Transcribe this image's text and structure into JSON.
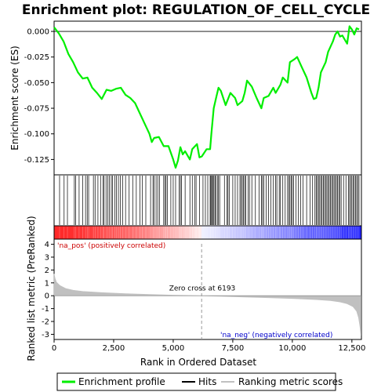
{
  "chart_data": {
    "type": "line",
    "title": "Enrichment plot: REGULATION_OF_CELL_CYCLE",
    "xlabel": "Rank in Ordered Dataset",
    "ylabel_top": "Enrichment score (ES)",
    "ylabel_bottom": "Ranked list metric (PreRanked)",
    "x_range": [
      0,
      12900
    ],
    "es_ylim": [
      -0.14,
      0.01
    ],
    "es_yticks": [
      0.0,
      -0.025,
      -0.05,
      -0.075,
      -0.1,
      -0.125
    ],
    "es_ytick_labels": [
      "0.000",
      "-0.025",
      "-0.050",
      "-0.075",
      "-0.100",
      "-0.125"
    ],
    "metric_ylim": [
      -3.4,
      4.4
    ],
    "metric_yticks": [
      4,
      3,
      2,
      1,
      0,
      -1,
      -2,
      -3
    ],
    "metric_ytick_labels": [
      "4",
      "3",
      "2",
      "1",
      "0",
      "-1",
      "-2",
      "-3"
    ],
    "xticks": [
      0,
      2500,
      5000,
      7500,
      10000,
      12500
    ],
    "xtick_labels": [
      "0",
      "2,500",
      "5,000",
      "7,500",
      "10,000",
      "12,500"
    ],
    "zero_cross": 6193,
    "zero_cross_label": "Zero cross at 6193",
    "pos_label": "'na_pos' (positively correlated)",
    "neg_label": "'na_neg' (negatively correlated)",
    "grid": false,
    "legend_position": "bottom",
    "legend": [
      {
        "name": "Enrichment profile",
        "color": "#00ee00"
      },
      {
        "name": "Hits",
        "color": "#000000"
      },
      {
        "name": "Ranking metric scores",
        "color": "#c0c0c0"
      }
    ],
    "colors": {
      "profile": "#00ee00",
      "hits": "#000000",
      "metric": "#c0c0c0",
      "pos": "#ff0000",
      "neg": "#0000ff"
    },
    "es_profile": [
      [
        0,
        0.004
      ],
      [
        200,
        -0.002
      ],
      [
        400,
        -0.01
      ],
      [
        600,
        -0.022
      ],
      [
        800,
        -0.03
      ],
      [
        1000,
        -0.04
      ],
      [
        1200,
        -0.046
      ],
      [
        1400,
        -0.045
      ],
      [
        1600,
        -0.055
      ],
      [
        1800,
        -0.06
      ],
      [
        2000,
        -0.066
      ],
      [
        2200,
        -0.057
      ],
      [
        2400,
        -0.058
      ],
      [
        2600,
        -0.056
      ],
      [
        2800,
        -0.055
      ],
      [
        3000,
        -0.062
      ],
      [
        3200,
        -0.065
      ],
      [
        3400,
        -0.07
      ],
      [
        3600,
        -0.08
      ],
      [
        3800,
        -0.09
      ],
      [
        4000,
        -0.1
      ],
      [
        4100,
        -0.108
      ],
      [
        4200,
        -0.104
      ],
      [
        4400,
        -0.103
      ],
      [
        4600,
        -0.112
      ],
      [
        4800,
        -0.112
      ],
      [
        5000,
        -0.125
      ],
      [
        5100,
        -0.133
      ],
      [
        5200,
        -0.126
      ],
      [
        5300,
        -0.113
      ],
      [
        5400,
        -0.12
      ],
      [
        5500,
        -0.117
      ],
      [
        5700,
        -0.125
      ],
      [
        5800,
        -0.115
      ],
      [
        6000,
        -0.11
      ],
      [
        6100,
        -0.123
      ],
      [
        6200,
        -0.122
      ],
      [
        6400,
        -0.115
      ],
      [
        6550,
        -0.115
      ],
      [
        6600,
        -0.1
      ],
      [
        6700,
        -0.075
      ],
      [
        6800,
        -0.065
      ],
      [
        6900,
        -0.055
      ],
      [
        7000,
        -0.058
      ],
      [
        7200,
        -0.072
      ],
      [
        7400,
        -0.06
      ],
      [
        7600,
        -0.065
      ],
      [
        7700,
        -0.072
      ],
      [
        7900,
        -0.068
      ],
      [
        8000,
        -0.06
      ],
      [
        8100,
        -0.048
      ],
      [
        8300,
        -0.054
      ],
      [
        8500,
        -0.065
      ],
      [
        8700,
        -0.075
      ],
      [
        8800,
        -0.065
      ],
      [
        9000,
        -0.063
      ],
      [
        9200,
        -0.055
      ],
      [
        9300,
        -0.06
      ],
      [
        9500,
        -0.052
      ],
      [
        9600,
        -0.045
      ],
      [
        9800,
        -0.05
      ],
      [
        9900,
        -0.03
      ],
      [
        10100,
        -0.027
      ],
      [
        10200,
        -0.025
      ],
      [
        10400,
        -0.035
      ],
      [
        10600,
        -0.045
      ],
      [
        10800,
        -0.06
      ],
      [
        10900,
        -0.066
      ],
      [
        11000,
        -0.065
      ],
      [
        11100,
        -0.055
      ],
      [
        11200,
        -0.04
      ],
      [
        11400,
        -0.03
      ],
      [
        11500,
        -0.02
      ],
      [
        11700,
        -0.01
      ],
      [
        11800,
        -0.003
      ],
      [
        11900,
        0.0
      ],
      [
        12000,
        -0.005
      ],
      [
        12100,
        -0.004
      ],
      [
        12200,
        -0.008
      ],
      [
        12300,
        -0.012
      ],
      [
        12400,
        0.005
      ],
      [
        12500,
        0.002
      ],
      [
        12600,
        -0.003
      ],
      [
        12700,
        0.003
      ],
      [
        12800,
        0.002
      ]
    ],
    "hit_ranks": [
      230,
      420,
      560,
      850,
      900,
      1050,
      1200,
      1320,
      1390,
      1450,
      1650,
      1720,
      1840,
      1950,
      2050,
      2100,
      2180,
      2250,
      2320,
      2400,
      2450,
      2550,
      2620,
      2700,
      2780,
      2880,
      3000,
      3150,
      3300,
      3450,
      3600,
      3700,
      3850,
      4050,
      4150,
      4200,
      4280,
      4350,
      4420,
      4600,
      4650,
      4700,
      4750,
      4900,
      5000,
      5100,
      5250,
      5300,
      5350,
      5500,
      5700,
      5800,
      5900,
      5960,
      6100,
      6250,
      6350,
      6450,
      6550,
      6580,
      6620,
      6650,
      6700,
      6750,
      6780,
      6850,
      6900,
      6950,
      7150,
      7250,
      7300,
      7350,
      7500,
      7600,
      7700,
      7800,
      7850,
      7900,
      7950,
      8000,
      8050,
      8150,
      8200,
      8300,
      8450,
      8600,
      8700,
      8750,
      8800,
      8900,
      9000,
      9100,
      9200,
      9300,
      9350,
      9450,
      9500,
      9600,
      9700,
      9800,
      9850,
      9900,
      9950,
      10000,
      10050,
      10150,
      10250,
      10350,
      10450,
      10600,
      10750,
      10850,
      10950,
      11000,
      11050,
      11100,
      11150,
      11200,
      11250,
      11300,
      11350,
      11400,
      11450,
      11500,
      11550,
      11600,
      11650,
      11700,
      11750,
      11800,
      11850,
      11900,
      11950,
      12000,
      12050,
      12150,
      12250,
      12350,
      12400,
      12450,
      12500,
      12550,
      12600,
      12650,
      12700,
      12750,
      12800
    ],
    "metric_curve": [
      [
        0,
        1.7
      ],
      [
        40,
        1.35
      ],
      [
        100,
        1.05
      ],
      [
        250,
        0.78
      ],
      [
        500,
        0.55
      ],
      [
        800,
        0.42
      ],
      [
        1200,
        0.33
      ],
      [
        2000,
        0.24
      ],
      [
        3000,
        0.15
      ],
      [
        4000,
        0.09
      ],
      [
        5000,
        0.04
      ],
      [
        6193,
        0.0
      ],
      [
        7000,
        -0.04
      ],
      [
        8000,
        -0.1
      ],
      [
        9000,
        -0.15
      ],
      [
        10000,
        -0.21
      ],
      [
        11000,
        -0.3
      ],
      [
        11600,
        -0.38
      ],
      [
        12000,
        -0.48
      ],
      [
        12300,
        -0.62
      ],
      [
        12550,
        -0.85
      ],
      [
        12700,
        -1.2
      ],
      [
        12780,
        -1.7
      ],
      [
        12840,
        -2.4
      ],
      [
        12880,
        -3.1
      ]
    ]
  }
}
